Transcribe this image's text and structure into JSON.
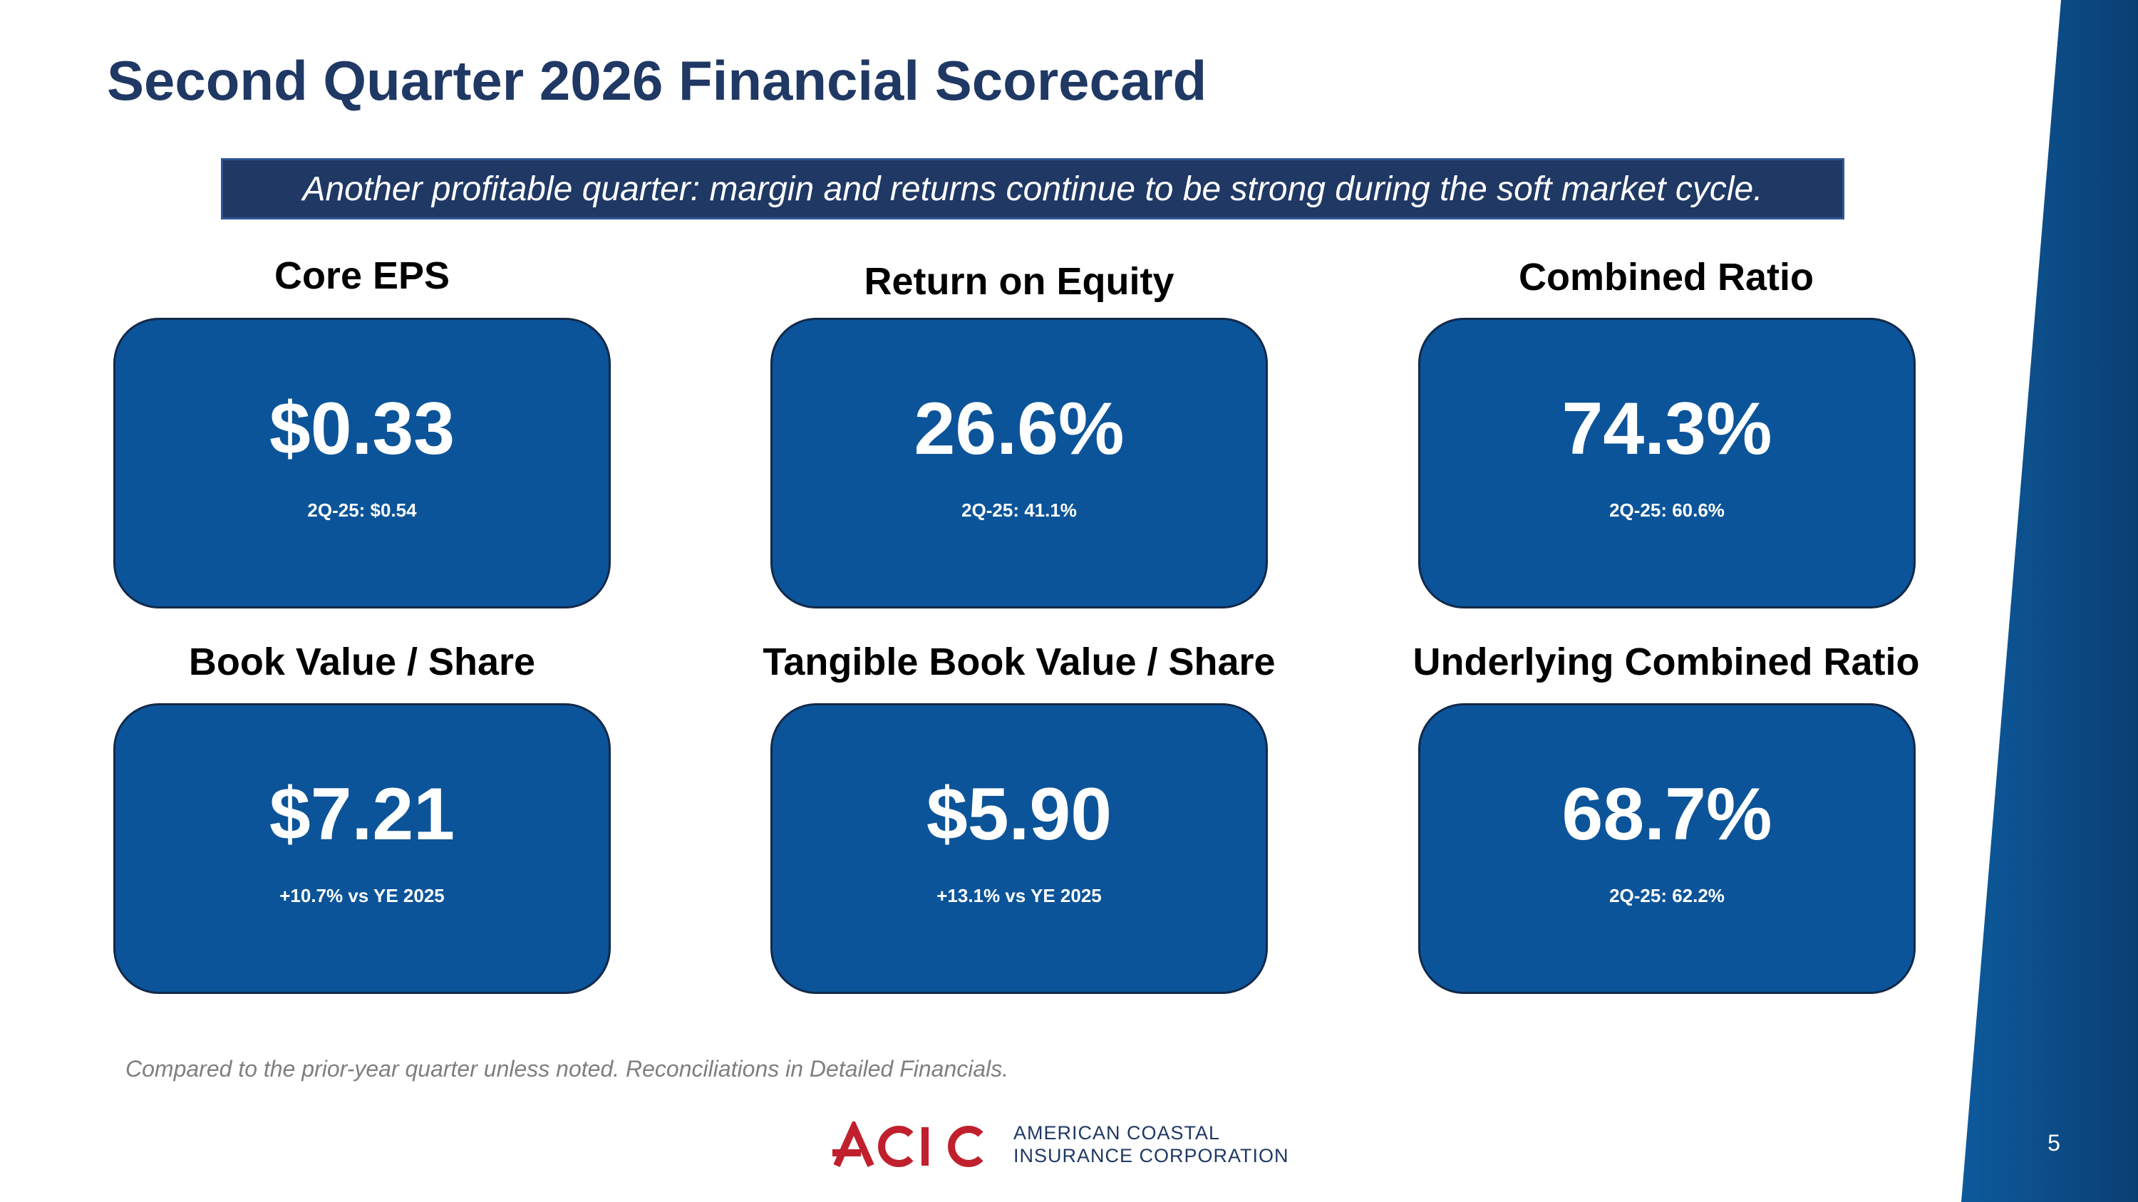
{
  "slide": {
    "title": "Second Quarter 2026 Financial Scorecard",
    "banner": "Another profitable quarter: margin and returns continue to be strong during the soft market cycle.",
    "footnote": "Compared to the prior-year quarter unless noted. Reconciliations in Detailed Financials.",
    "page_number": "5"
  },
  "metrics": [
    {
      "label": "Core EPS",
      "value": "$0.33",
      "sub": "2Q-25: $0.54"
    },
    {
      "label": "Return on Equity",
      "value": "26.6%",
      "sub": "2Q-25: 41.1%"
    },
    {
      "label": "Combined Ratio",
      "value": "74.3%",
      "sub": "2Q-25: 60.6%"
    },
    {
      "label": "Book Value / Share",
      "value": "$7.21",
      "sub": "+10.7% vs YE 2025"
    },
    {
      "label": "Tangible Book Value / Share",
      "value": "$5.90",
      "sub": "+13.1% vs YE 2025"
    },
    {
      "label": "Underlying Combined Ratio",
      "value": "68.7%",
      "sub": "2Q-25: 62.2%"
    }
  ],
  "brand": {
    "logo_text": "ACIC",
    "company_line1": "AMERICAN COASTAL",
    "company_line2": "INSURANCE CORPORATION",
    "colors": {
      "navy": "#1f3864",
      "card_blue": "#0b5499",
      "logo_red": "#c0202d",
      "band_blue": "#0d5a9c"
    }
  }
}
